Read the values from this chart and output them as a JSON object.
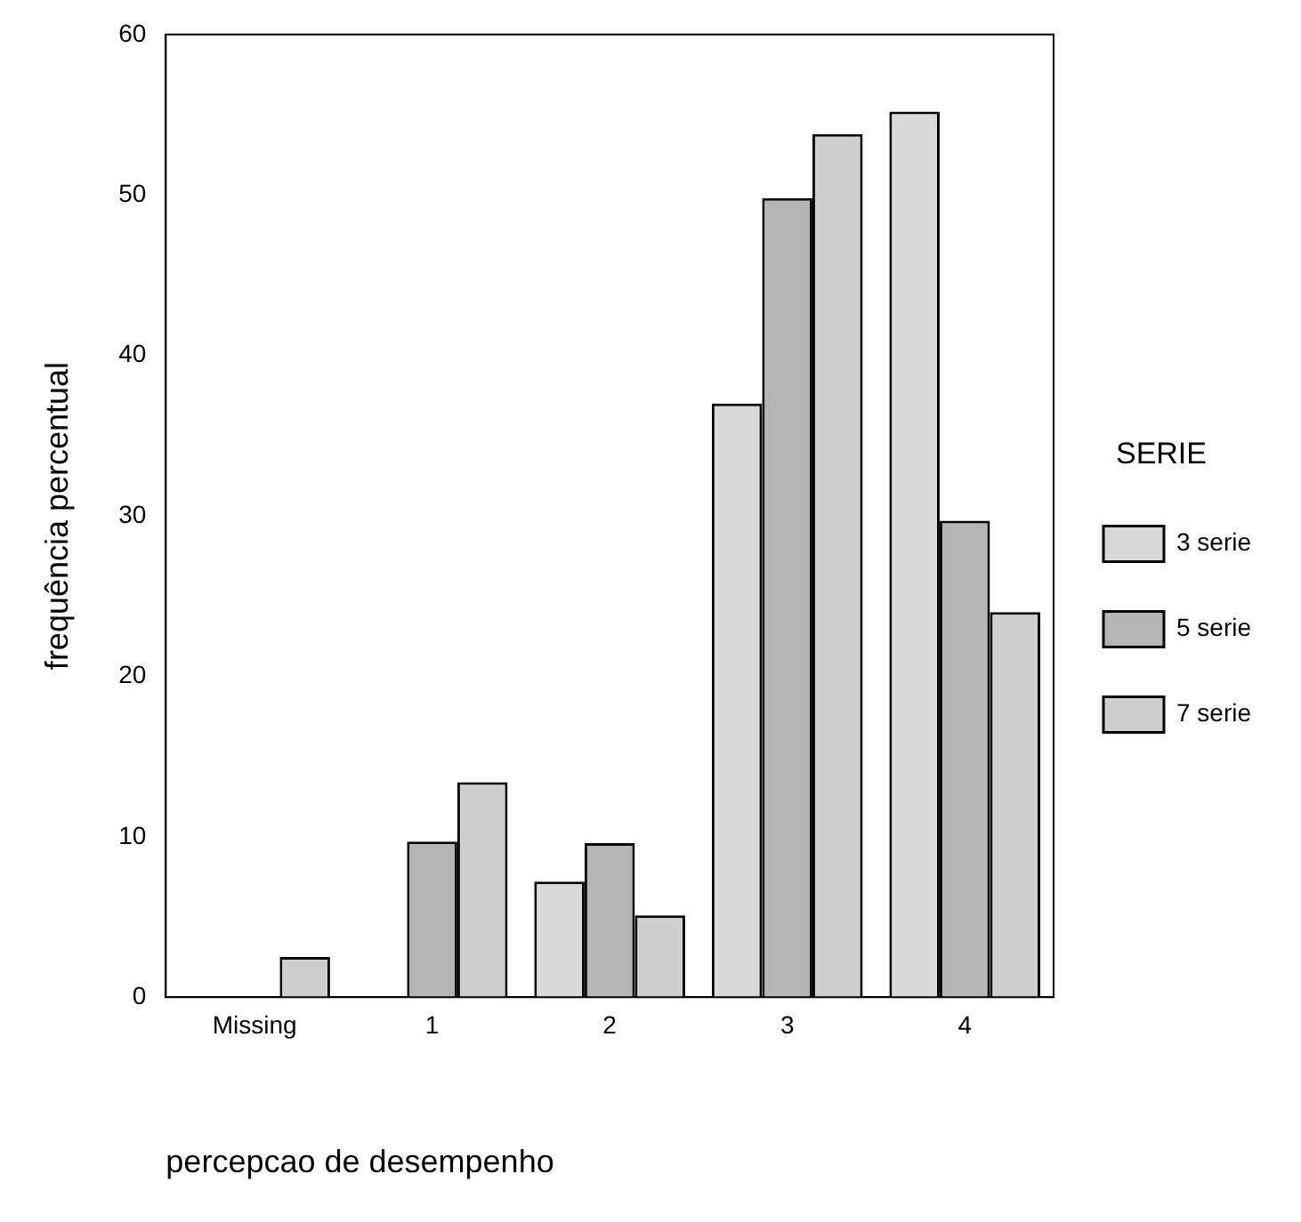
{
  "chart_data": {
    "type": "bar",
    "xlabel": "percepcao de desempenho",
    "ylabel": "frequência percentual",
    "legend_title": "SERIE",
    "categories": [
      "Missing",
      "1",
      "2",
      "3",
      "4"
    ],
    "series": [
      {
        "name": "3 serie",
        "color": "#d9d9d9",
        "values": [
          null,
          null,
          7.2,
          37,
          55.2
        ]
      },
      {
        "name": "5 serie",
        "color": "#b5b5b5",
        "values": [
          null,
          9.7,
          9.6,
          49.8,
          29.7
        ]
      },
      {
        "name": "7 serie",
        "color": "#cfcfcf",
        "values": [
          2.5,
          13.4,
          5.1,
          53.8,
          24
        ]
      }
    ],
    "ylim": [
      0,
      60
    ],
    "yticks": [
      0,
      10,
      20,
      30,
      40,
      50,
      60
    ],
    "grid": false,
    "legend": "right"
  }
}
